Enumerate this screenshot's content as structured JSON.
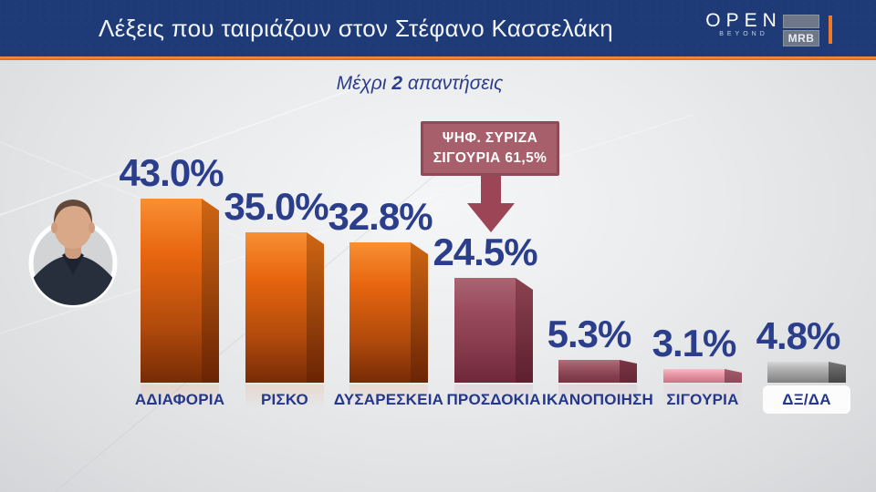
{
  "header": {
    "title": "Λέξεις που ταιριάζουν στον Στέφανο Κασσελάκη",
    "channel_logo": {
      "name": "OPEN",
      "tagline": "BEYOND"
    },
    "agency_logo": "MRB"
  },
  "subtitle": {
    "prefix": "Μέχρι ",
    "bold": "2",
    "suffix": " απαντήσεις"
  },
  "chart_data": {
    "type": "bar",
    "title": "Λέξεις που ταιριάζουν στον Στέφανο Κασσελάκη",
    "subtitle": "Μέχρι 2 απαντήσεις",
    "categories": [
      "ΑΔΙΑΦΟΡΙΑ",
      "ΡΙΣΚΟ",
      "ΔΥΣΑΡΕΣΚΕΙΑ",
      "ΠΡΟΣΔΟΚΙΑ",
      "ΙΚΑΝΟΠΟΙΗΣΗ",
      "ΣΙΓΟΥΡΙΑ",
      "ΔΞ/ΔΑ"
    ],
    "values": [
      43.0,
      35.0,
      32.8,
      24.5,
      5.3,
      3.1,
      4.8
    ],
    "value_labels": [
      "43.0%",
      "35.0%",
      "32.8%",
      "24.5%",
      "5.3%",
      "3.1%",
      "4.8%"
    ],
    "ylim": [
      0,
      45
    ],
    "grid": false,
    "bar_style": "3d",
    "legend": "none",
    "annotation": {
      "line1": "ΨΗΦ. ΣΥΡΙΖΑ",
      "line2": "ΣΙΓΟΥΡΙΑ 61,5%",
      "target_category": "ΠΡΟΣΔΟΚΙΑ"
    },
    "bar_colors": [
      {
        "face_top": "#f88f33",
        "face_mid": "#e8660f",
        "face_low": "#b04a0c",
        "face_bottom": "#772b06",
        "side_top": "#cf6613",
        "side_bottom": "#6a2404"
      },
      {
        "face_top": "#f88f33",
        "face_mid": "#e8660f",
        "face_low": "#b04a0c",
        "face_bottom": "#772b06",
        "side_top": "#cf6613",
        "side_bottom": "#6a2404"
      },
      {
        "face_top": "#f88f33",
        "face_mid": "#e8660f",
        "face_low": "#b04a0c",
        "face_bottom": "#772b06",
        "side_top": "#cf6613",
        "side_bottom": "#6a2404"
      },
      {
        "face_top": "#ab6472",
        "face_mid": "#9a4c5e",
        "face_low": "#84394b",
        "face_bottom": "#6e2739",
        "side_top": "#8a4250",
        "side_bottom": "#5e1f2e"
      },
      {
        "face_top": "#b26e7a",
        "face_mid": "#9d5765",
        "face_low": "#84404f",
        "face_bottom": "#773443",
        "side_top": "#7c3443",
        "side_bottom": "#662736"
      },
      {
        "face_top": "#f6bdc6",
        "face_mid": "#eb9fad",
        "face_low": "#d98495",
        "face_bottom": "#c97587",
        "side_top": "#a55b6a",
        "side_bottom": "#8c4a59"
      },
      {
        "face_top": "#d8d8d8",
        "face_mid": "#b5b5b5",
        "face_low": "#979797",
        "face_bottom": "#7f7f7f",
        "side_top": "#757575",
        "side_bottom": "#454545"
      }
    ]
  },
  "colors": {
    "header_bg": "#1e3b78",
    "accent_orange": "#ed6a11",
    "title_text": "#f3f5f9",
    "value_text": "#2b3e8c",
    "category_text": "#24388a",
    "callout_bg": "#a7606b",
    "callout_border": "#8e4a57",
    "callout_arrow": "#9c4556",
    "callout_text": "#ffffff"
  }
}
